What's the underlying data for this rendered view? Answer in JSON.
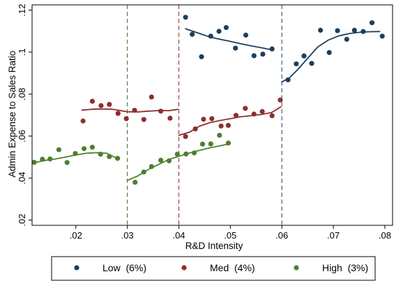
{
  "chart_data": {
    "type": "scatter",
    "title": "",
    "xlabel": "R&D Intensity",
    "ylabel": "Admin Expense to Sales Ratio",
    "xlim": [
      0.0115,
      0.0815
    ],
    "ylim": [
      0.0175,
      0.1225
    ],
    "x_ticks": [
      0.02,
      0.03,
      0.04,
      0.05,
      0.06,
      0.07,
      0.08
    ],
    "x_tick_labels": [
      ".02",
      ".03",
      ".04",
      ".05",
      ".06",
      ".07",
      ".08"
    ],
    "y_ticks": [
      0.02,
      0.04,
      0.06,
      0.08,
      0.1,
      0.12
    ],
    "y_tick_labels": [
      ".02",
      ".04",
      ".06",
      ".08",
      ".1",
      ".12"
    ],
    "grid": false,
    "legend_position": "bottom",
    "thresholds": [
      {
        "x": 0.03,
        "color": "#2e6b1f"
      },
      {
        "x": 0.04,
        "color": "#8b2b2b"
      },
      {
        "x": 0.06,
        "color": "#1b3f63"
      }
    ],
    "series": [
      {
        "name": "Low  (6%)",
        "color": "#1c3e5f",
        "segments": [
          {
            "points": [
              [
                0.0413,
                0.1166
              ],
              [
                0.0426,
                0.1085
              ],
              [
                0.0444,
                0.0978
              ],
              [
                0.0462,
                0.1076
              ],
              [
                0.0478,
                0.1099
              ],
              [
                0.0492,
                0.1117
              ],
              [
                0.051,
                0.1019
              ],
              [
                0.053,
                0.1081
              ],
              [
                0.0546,
                0.0983
              ],
              [
                0.0563,
                0.099
              ],
              [
                0.0581,
                0.1015
              ]
            ],
            "fit": [
              [
                0.0413,
                0.1111
              ],
              [
                0.044,
                0.1089
              ],
              [
                0.046,
                0.1072
              ],
              [
                0.048,
                0.1061
              ],
              [
                0.05,
                0.1051
              ],
              [
                0.052,
                0.104
              ],
              [
                0.054,
                0.103
              ],
              [
                0.056,
                0.1021
              ],
              [
                0.0582,
                0.101
              ]
            ]
          },
          {
            "points": [
              [
                0.0612,
                0.0868
              ],
              [
                0.0628,
                0.0944
              ],
              [
                0.0643,
                0.0982
              ],
              [
                0.0658,
                0.0946
              ],
              [
                0.0675,
                0.1104
              ],
              [
                0.0692,
                0.0998
              ],
              [
                0.0708,
                0.1102
              ],
              [
                0.0726,
                0.1061
              ],
              [
                0.0741,
                0.1104
              ],
              [
                0.0758,
                0.1098
              ],
              [
                0.0775,
                0.114
              ],
              [
                0.0795,
                0.1076
              ]
            ],
            "fit": [
              [
                0.06,
                0.0858
              ],
              [
                0.0615,
                0.0878
              ],
              [
                0.063,
                0.0915
              ],
              [
                0.065,
                0.097
              ],
              [
                0.067,
                0.1025
              ],
              [
                0.069,
                0.1057
              ],
              [
                0.071,
                0.1077
              ],
              [
                0.073,
                0.1088
              ],
              [
                0.075,
                0.1094
              ],
              [
                0.077,
                0.1097
              ],
              [
                0.079,
                0.1098
              ]
            ]
          }
        ]
      },
      {
        "name": "Med  (4%)",
        "color": "#8c2f2f",
        "segments": [
          {
            "points": [
              [
                0.0214,
                0.0672
              ],
              [
                0.0232,
                0.0766
              ],
              [
                0.0249,
                0.0745
              ],
              [
                0.0265,
                0.0751
              ],
              [
                0.0282,
                0.0708
              ],
              [
                0.0298,
                0.0683
              ],
              [
                0.0314,
                0.0723
              ],
              [
                0.0332,
                0.0679
              ],
              [
                0.0347,
                0.0786
              ],
              [
                0.0365,
                0.0719
              ],
              [
                0.0383,
                0.0685
              ]
            ],
            "fit": [
              [
                0.0212,
                0.0724
              ],
              [
                0.024,
                0.0729
              ],
              [
                0.027,
                0.0728
              ],
              [
                0.03,
                0.0716
              ],
              [
                0.032,
                0.0715
              ],
              [
                0.034,
                0.0719
              ],
              [
                0.0365,
                0.0722
              ],
              [
                0.038,
                0.0721
              ],
              [
                0.0398,
                0.0727
              ]
            ]
          },
          {
            "points": [
              [
                0.0413,
                0.0598
              ],
              [
                0.0432,
                0.0634
              ],
              [
                0.0448,
                0.068
              ],
              [
                0.0464,
                0.0683
              ],
              [
                0.0482,
                0.0648
              ],
              [
                0.0496,
                0.0651
              ],
              [
                0.0511,
                0.0699
              ],
              [
                0.0529,
                0.0732
              ],
              [
                0.0546,
                0.0705
              ],
              [
                0.0562,
                0.0717
              ],
              [
                0.0581,
                0.0697
              ],
              [
                0.0597,
                0.0772
              ]
            ],
            "fit": [
              [
                0.04,
                0.0604
              ],
              [
                0.042,
                0.0618
              ],
              [
                0.044,
                0.0647
              ],
              [
                0.046,
                0.0664
              ],
              [
                0.048,
                0.0674
              ],
              [
                0.05,
                0.0683
              ],
              [
                0.052,
                0.0692
              ],
              [
                0.054,
                0.0697
              ],
              [
                0.056,
                0.0703
              ],
              [
                0.058,
                0.0712
              ],
              [
                0.0598,
                0.0739
              ]
            ]
          }
        ]
      },
      {
        "name": "High  (3%)",
        "color": "#4f7f2c",
        "segments": [
          {
            "points": [
              [
                0.0119,
                0.0475
              ],
              [
                0.0135,
                0.049
              ],
              [
                0.015,
                0.0491
              ],
              [
                0.0167,
                0.0535
              ],
              [
                0.0183,
                0.0474
              ],
              [
                0.0199,
                0.0517
              ],
              [
                0.0216,
                0.054
              ],
              [
                0.0232,
                0.0547
              ],
              [
                0.0248,
                0.0514
              ],
              [
                0.0265,
                0.0502
              ],
              [
                0.0281,
                0.0494
              ]
            ],
            "fit": [
              [
                0.0117,
                0.0472
              ],
              [
                0.014,
                0.0484
              ],
              [
                0.016,
                0.0491
              ],
              [
                0.018,
                0.05
              ],
              [
                0.02,
                0.051
              ],
              [
                0.022,
                0.0518
              ],
              [
                0.024,
                0.0521
              ],
              [
                0.026,
                0.0518
              ],
              [
                0.028,
                0.0494
              ]
            ]
          },
          {
            "points": [
              [
                0.0315,
                0.038
              ],
              [
                0.0332,
                0.0429
              ],
              [
                0.0347,
                0.0455
              ],
              [
                0.0365,
                0.0485
              ],
              [
                0.0381,
                0.0482
              ],
              [
                0.0397,
                0.0514
              ],
              [
                0.0414,
                0.0515
              ],
              [
                0.043,
                0.052
              ],
              [
                0.0446,
                0.0562
              ],
              [
                0.0462,
                0.0563
              ],
              [
                0.0479,
                0.0604
              ],
              [
                0.0496,
                0.0567
              ]
            ],
            "fit": [
              [
                0.03,
                0.0389
              ],
              [
                0.032,
                0.041
              ],
              [
                0.034,
                0.044
              ],
              [
                0.036,
                0.0464
              ],
              [
                0.038,
                0.0488
              ],
              [
                0.04,
                0.0504
              ],
              [
                0.042,
                0.0519
              ],
              [
                0.044,
                0.0532
              ],
              [
                0.046,
                0.0544
              ],
              [
                0.048,
                0.0554
              ],
              [
                0.0496,
                0.0562
              ]
            ]
          }
        ]
      }
    ]
  }
}
